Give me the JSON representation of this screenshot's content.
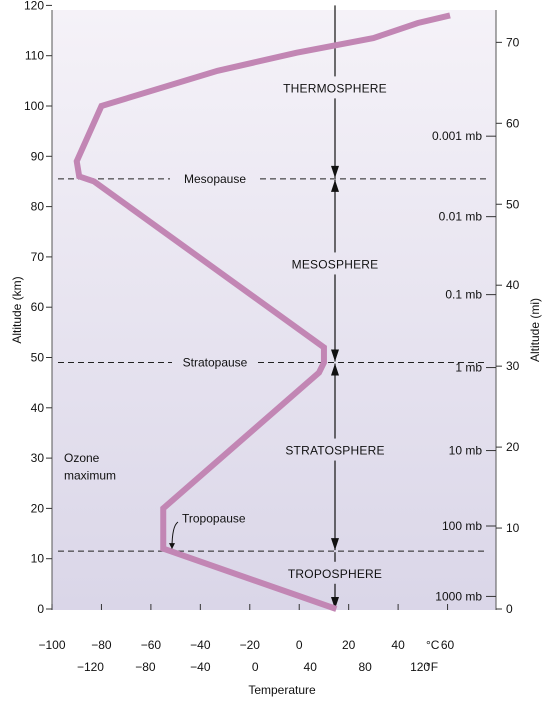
{
  "chart_data": {
    "type": "line",
    "ylabel_left": "Altitude (km)",
    "ylabel_right": "Altitude (mi)",
    "xlabel": "Temperature",
    "x_range_c": [
      -100,
      80
    ],
    "y_range_km": [
      0,
      120
    ],
    "grid": false,
    "colors": {
      "profile": "#c286b4",
      "background_top": "#f5f2f8",
      "background_bottom": "#dad6e8"
    },
    "x_ticks_c": [
      -100,
      -80,
      -60,
      -40,
      -20,
      0,
      20,
      40,
      60
    ],
    "x_tick_labels_c": [
      "−100",
      "−80",
      "−60",
      "−40",
      "−20",
      "0",
      "20",
      "40",
      "60"
    ],
    "x_ticks_f": [
      -120,
      -80,
      -40,
      0,
      40,
      80,
      120
    ],
    "x_tick_labels_f": [
      "−120",
      "−80",
      "−40",
      "0",
      "40",
      "80",
      "120"
    ],
    "unit_c": "°C",
    "unit_f": "°F",
    "y_ticks_km": [
      0,
      10,
      20,
      30,
      40,
      50,
      60,
      70,
      80,
      90,
      100,
      110,
      120
    ],
    "y_tick_labels_km": [
      "0",
      "10",
      "20",
      "30",
      "40",
      "50",
      "60",
      "70",
      "80",
      "90",
      "100",
      "110",
      "120"
    ],
    "y_ticks_mi": [
      0,
      10,
      20,
      30,
      40,
      50,
      60,
      70
    ],
    "y_tick_labels_mi": [
      "0",
      "10",
      "20",
      "30",
      "40",
      "50",
      "60",
      "70"
    ],
    "temperature_profile": {
      "x_c": [
        15,
        -55,
        -55,
        8,
        10,
        10,
        -83,
        -89,
        -90,
        -80,
        -33,
        -1,
        30,
        48,
        61
      ],
      "y_km": [
        0,
        12,
        20,
        47,
        49,
        52,
        85,
        86,
        89,
        100,
        107,
        110.6,
        113.5,
        116.5,
        118
      ]
    },
    "boundaries": [
      {
        "name": "Tropopause",
        "altitude_km": 11.5
      },
      {
        "name": "Stratopause",
        "altitude_km": 49
      },
      {
        "name": "Mesopause",
        "altitude_km": 85.5
      }
    ],
    "layers": [
      {
        "name": "TROPOSPHERE",
        "altitude_km": 7
      },
      {
        "name": "STRATOSPHERE",
        "altitude_km": 31.5
      },
      {
        "name": "MESOSPHERE",
        "altitude_km": 68.5
      },
      {
        "name": "THERMOSPHERE",
        "altitude_km": 103.5
      }
    ],
    "pressure_levels": [
      {
        "label": "1000 mb",
        "altitude_km": 2.5
      },
      {
        "label": "100 mb",
        "altitude_km": 16.5
      },
      {
        "label": "10 mb",
        "altitude_km": 31.5
      },
      {
        "label": "1 mb",
        "altitude_km": 48
      },
      {
        "label": "0.1 mb",
        "altitude_km": 62.5
      },
      {
        "label": "0.01 mb",
        "altitude_km": 78
      },
      {
        "label": "0.001 mb",
        "altitude_km": 94
      }
    ],
    "annotations": [
      {
        "text": "Ozone",
        "altitude_km": 30
      },
      {
        "text": "maximum",
        "altitude_km": 26.5
      }
    ]
  }
}
